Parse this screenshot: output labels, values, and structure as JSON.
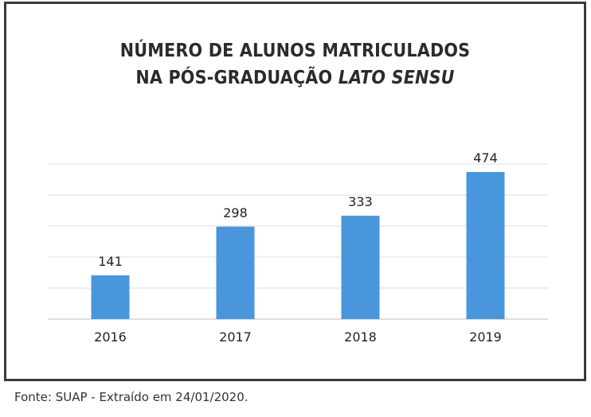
{
  "chart_data": {
    "type": "bar",
    "title_line1": "NÚMERO DE ALUNOS MATRICULADOS",
    "title_line2_prefix": "NA PÓS-GRADUAÇÃO ",
    "title_line2_emph": "LATO SENSU",
    "categories": [
      "2016",
      "2017",
      "2018",
      "2019"
    ],
    "values": [
      141,
      298,
      333,
      474
    ],
    "data_labels": [
      "141",
      "298",
      "333",
      "474"
    ],
    "ylim": [
      0,
      500
    ],
    "grid": true,
    "legend": "none",
    "bar_color": "#4a96dc"
  },
  "caption": "Fonte: SUAP - Extraído em 24/01/2020."
}
